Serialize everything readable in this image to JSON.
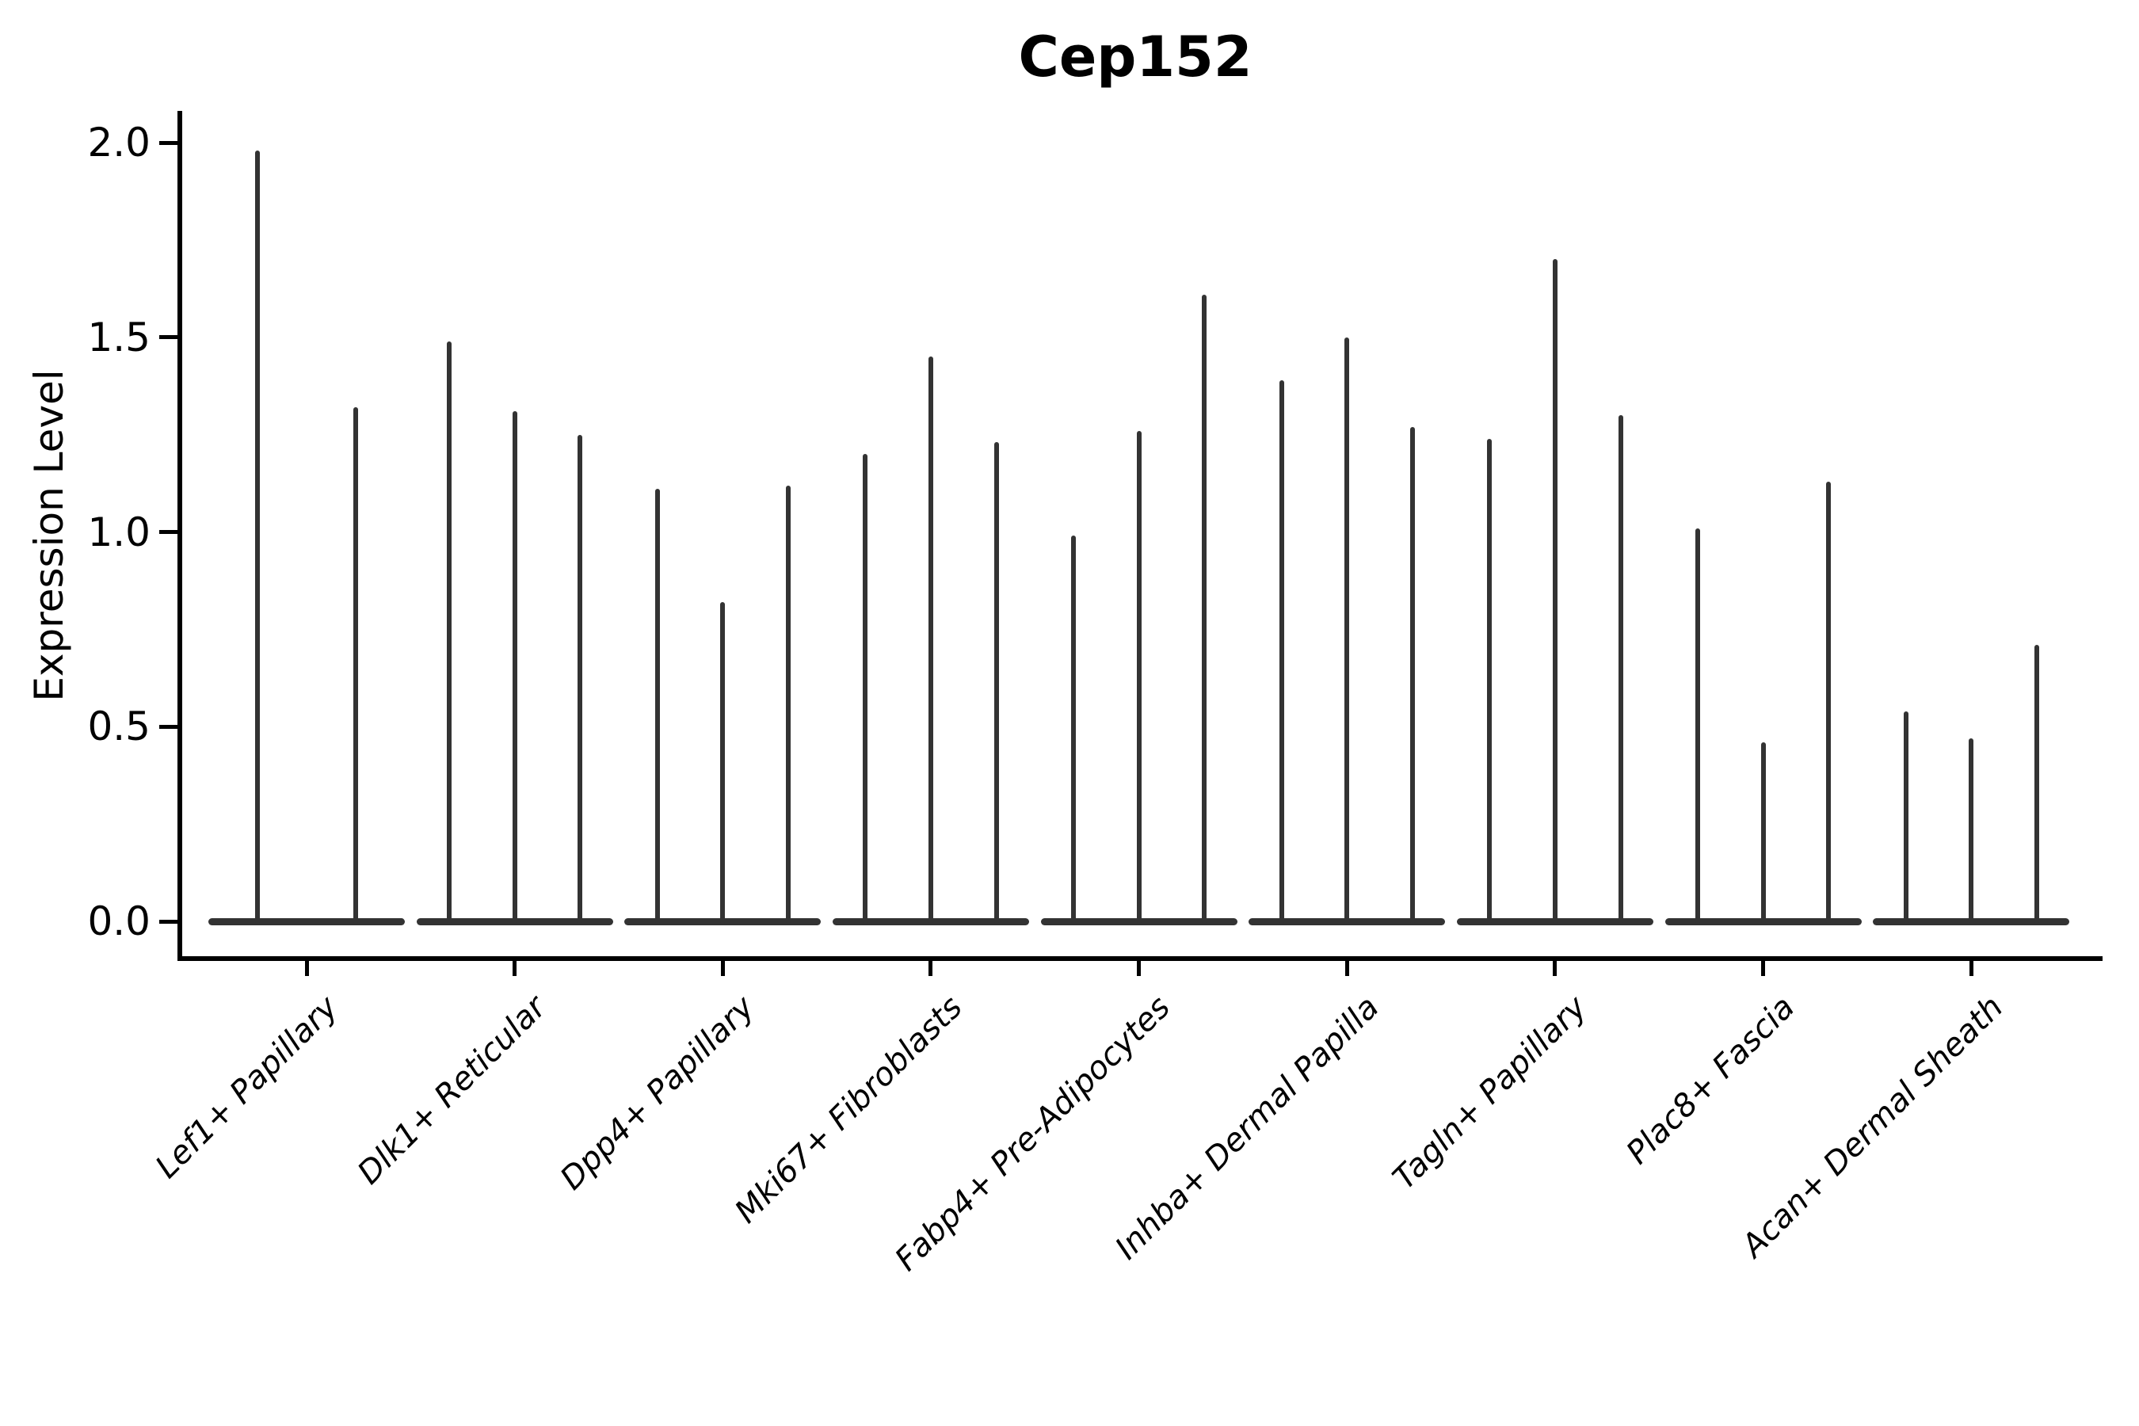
{
  "figure": {
    "background": "#ffffff"
  },
  "colors": {
    "violin": "#333333",
    "axis": "#000000",
    "text": "#000000"
  },
  "chart_data": {
    "type": "violin",
    "title": "Cep152",
    "ylabel": "Expression Level",
    "xlabel": "",
    "ylim": [
      0,
      2.08
    ],
    "yticks": [
      {
        "label": "0.0",
        "value": 0.0
      },
      {
        "label": "0.5",
        "value": 0.5
      },
      {
        "label": "1.0",
        "value": 1.0
      },
      {
        "label": "1.5",
        "value": 1.5
      },
      {
        "label": "2.0",
        "value": 2.0
      }
    ],
    "grid": false,
    "legend_position": "none",
    "baseline_value": 0.0,
    "note_shape": "each violin is a flat dense base at 0 with a thin spike up to its max expression value",
    "categories": [
      "Lef1+ Papillary",
      "Dlk1+ Reticular",
      "Dpp4+ Papillary",
      "Mki67+ Fibroblasts",
      "Fabp4+ Pre-Adipocytes",
      "Inhba+ Dermal Papilla",
      "Tagln+ Papillary",
      "Plac8+ Fascia",
      "Acan+ Dermal Sheath"
    ],
    "groups": [
      {
        "category": "Lef1+ Papillary",
        "violin_peaks": [
          1.98,
          1.32
        ]
      },
      {
        "category": "Dlk1+ Reticular",
        "violin_peaks": [
          1.49,
          1.31,
          1.25
        ]
      },
      {
        "category": "Dpp4+ Papillary",
        "violin_peaks": [
          1.11,
          0.82,
          1.12
        ]
      },
      {
        "category": "Mki67+ Fibroblasts",
        "violin_peaks": [
          1.2,
          1.45,
          1.23
        ]
      },
      {
        "category": "Fabp4+ Pre-Adipocytes",
        "violin_peaks": [
          0.99,
          1.26,
          1.61
        ]
      },
      {
        "category": "Inhba+ Dermal Papilla",
        "violin_peaks": [
          1.39,
          1.5,
          1.27
        ]
      },
      {
        "category": "Tagln+ Papillary",
        "violin_peaks": [
          1.24,
          1.7,
          1.3
        ]
      },
      {
        "category": "Plac8+ Fascia",
        "violin_peaks": [
          1.01,
          0.46,
          1.13
        ]
      },
      {
        "category": "Acan+ Dermal Sheath",
        "violin_peaks": [
          0.54,
          0.47,
          0.71
        ]
      }
    ]
  }
}
